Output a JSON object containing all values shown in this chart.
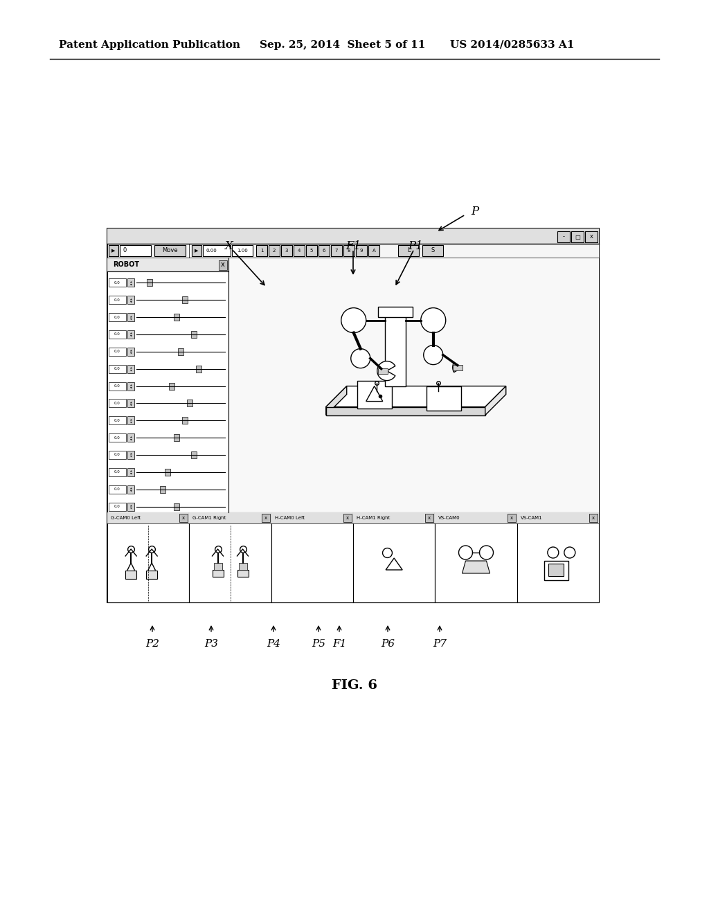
{
  "bg_color": "#ffffff",
  "header_left": "Patent Application Publication",
  "header_mid": "Sep. 25, 2014  Sheet 5 of 11",
  "header_right": "US 2014/0285633 A1",
  "fig_label": "FIG. 6",
  "label_P": "P",
  "label_X": "X",
  "label_F1_top": "F1",
  "label_P1": "P1",
  "label_P2": "P2",
  "label_P3": "P3",
  "label_P4": "P4",
  "label_P5": "P5",
  "label_F1_bot": "F1",
  "label_P6": "P6",
  "label_P7": "P7",
  "line_color": "#000000",
  "toolbar_text": [
    "0",
    "Move",
    "0.00",
    "1.00",
    "1",
    "2",
    "3",
    "4",
    "5",
    "6",
    "7",
    "8",
    "9",
    "A",
    "L",
    "S"
  ],
  "robot_panel_title": "ROBOT",
  "slider_values": [
    "0.0",
    "0.0",
    "0.0",
    "0.0",
    "0.0",
    "0.0",
    "0.0",
    "0.0",
    "0.0",
    "0.0",
    "0.0",
    "0.0",
    "0.0",
    "0.0"
  ],
  "subpanel_labels": [
    "G-CAM0 Left",
    "G-CAM1 Right",
    "H-CAM0 Left",
    "H-CAM1 Right",
    "VS-CAM0",
    "VS-CAM1"
  ]
}
